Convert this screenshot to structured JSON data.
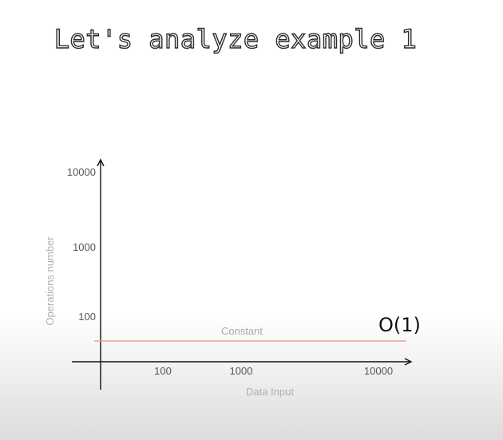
{
  "title": "Let's analyze example 1",
  "chart_data": {
    "type": "line",
    "xlabel": "Data Input",
    "ylabel": "Operations number",
    "x_ticks": [
      "100",
      "1000",
      "10000"
    ],
    "y_ticks": [
      "100",
      "1000",
      "10000"
    ],
    "log_scale": true,
    "grid": false,
    "series": [
      {
        "name": "Constant",
        "label": "O(1)",
        "color": "#e8a595",
        "y": 1
      }
    ]
  }
}
